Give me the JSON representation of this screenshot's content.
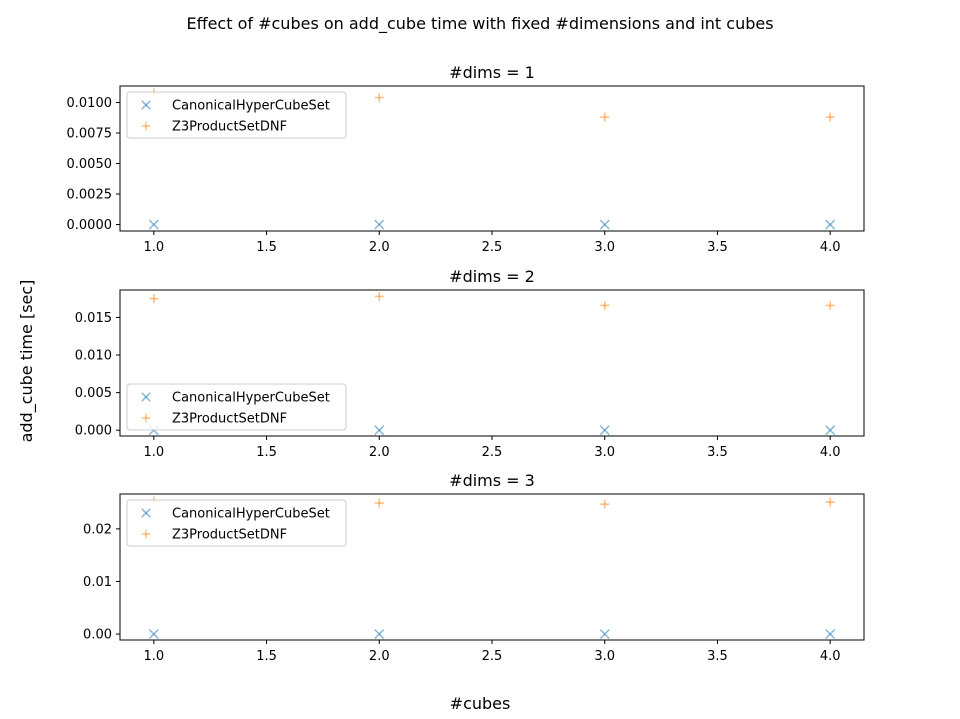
{
  "figure": {
    "suptitle": "Effect of #cubes on add_cube time with fixed #dimensions and int cubes",
    "xlabel": "#cubes",
    "ylabel": "add_cube time [sec]"
  },
  "colors": {
    "canonical": "#1f77b4",
    "z3": "#ff7f0e",
    "axes": "#000000",
    "legend_border": "#cccccc"
  },
  "chart_data": [
    {
      "type": "scatter",
      "title": "#dims = 1",
      "xlim": [
        0.85,
        4.15
      ],
      "ylim": [
        -0.00053,
        0.01135
      ],
      "xticks": [
        "1.0",
        "1.5",
        "2.0",
        "2.5",
        "3.0",
        "3.5",
        "4.0"
      ],
      "xtick_values": [
        1.0,
        1.5,
        2.0,
        2.5,
        3.0,
        3.5,
        4.0
      ],
      "yticks": [
        "0.0000",
        "0.0025",
        "0.0050",
        "0.0075",
        "0.0100"
      ],
      "ytick_values": [
        0.0,
        0.0025,
        0.005,
        0.0075,
        0.01
      ],
      "legend": "upper-left",
      "grid": false,
      "series": [
        {
          "name": "CanonicalHyperCubeSet",
          "marker": "x",
          "x": [
            1,
            2,
            3,
            4
          ],
          "y": [
            0.0,
            0.0,
            0.0,
            0.0
          ]
        },
        {
          "name": "Z3ProductSetDNF",
          "marker": "+",
          "x": [
            1,
            2,
            3,
            4
          ],
          "y": [
            0.0108,
            0.0104,
            0.0088,
            0.0088
          ]
        }
      ]
    },
    {
      "type": "scatter",
      "title": "#dims = 2",
      "xlim": [
        0.85,
        4.15
      ],
      "ylim": [
        -0.00077,
        0.01865
      ],
      "xticks": [
        "1.0",
        "1.5",
        "2.0",
        "2.5",
        "3.0",
        "3.5",
        "4.0"
      ],
      "xtick_values": [
        1.0,
        1.5,
        2.0,
        2.5,
        3.0,
        3.5,
        4.0
      ],
      "yticks": [
        "0.000",
        "0.005",
        "0.010",
        "0.015"
      ],
      "ytick_values": [
        0.0,
        0.005,
        0.01,
        0.015
      ],
      "legend": "lower-left",
      "grid": false,
      "series": [
        {
          "name": "CanonicalHyperCubeSet",
          "marker": "x",
          "x": [
            1,
            2,
            3,
            4
          ],
          "y": [
            0.0,
            0.0,
            0.0,
            0.0
          ]
        },
        {
          "name": "Z3ProductSetDNF",
          "marker": "+",
          "x": [
            1,
            2,
            3,
            4
          ],
          "y": [
            0.0175,
            0.0178,
            0.0166,
            0.0166
          ]
        }
      ]
    },
    {
      "type": "scatter",
      "title": "#dims = 3",
      "xlim": [
        0.85,
        4.15
      ],
      "ylim": [
        -0.00113,
        0.02663
      ],
      "xticks": [
        "1.0",
        "1.5",
        "2.0",
        "2.5",
        "3.0",
        "3.5",
        "4.0"
      ],
      "xtick_values": [
        1.0,
        1.5,
        2.0,
        2.5,
        3.0,
        3.5,
        4.0
      ],
      "yticks": [
        "0.00",
        "0.01",
        "0.02"
      ],
      "ytick_values": [
        0.0,
        0.01,
        0.02
      ],
      "legend": "upper-left",
      "grid": false,
      "series": [
        {
          "name": "CanonicalHyperCubeSet",
          "marker": "x",
          "x": [
            1,
            2,
            3,
            4
          ],
          "y": [
            0.0,
            0.0,
            0.0,
            0.0
          ]
        },
        {
          "name": "Z3ProductSetDNF",
          "marker": "+",
          "x": [
            1,
            2,
            3,
            4
          ],
          "y": [
            0.0253,
            0.0249,
            0.0247,
            0.0251
          ]
        }
      ]
    }
  ]
}
